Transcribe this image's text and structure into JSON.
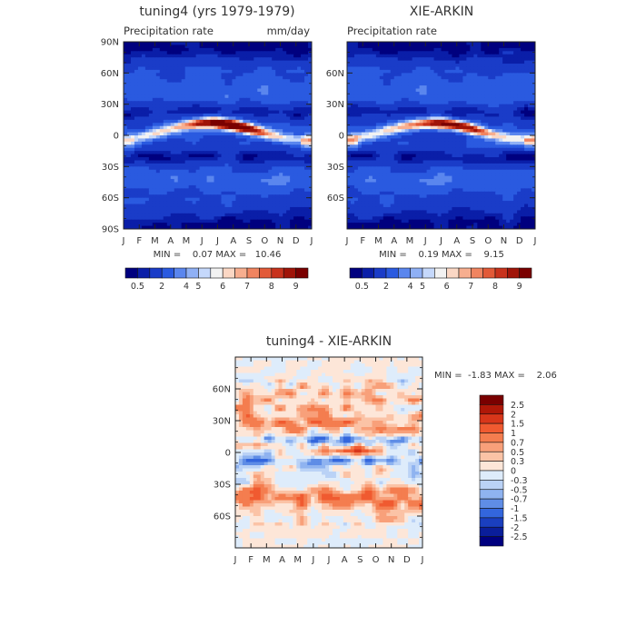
{
  "chart_data": [
    {
      "type": "heatmap",
      "id": "model",
      "title": "tuning4 (yrs 1979-1979)",
      "subtitle_left": "Precipitation rate",
      "subtitle_right": "mm/day",
      "x_ticks": [
        "J",
        "F",
        "M",
        "A",
        "M",
        "J",
        "J",
        "A",
        "S",
        "O",
        "N",
        "D",
        "J"
      ],
      "y_ticks": [
        "90N",
        "60N",
        "30N",
        "0",
        "30S",
        "60S",
        "90S"
      ],
      "y_range": [
        -90,
        90
      ],
      "stats": "MIN =    0.07 MAX =   10.46",
      "min": 0.07,
      "max": 10.46,
      "colorbar_labels": [
        "0.5",
        "2",
        "4",
        "5",
        "6",
        "7",
        "8",
        "9"
      ]
    },
    {
      "type": "heatmap",
      "id": "obs",
      "title": "XIE-ARKIN",
      "subtitle_left": "Precipitation rate",
      "x_ticks": [
        "J",
        "F",
        "M",
        "A",
        "M",
        "J",
        "J",
        "A",
        "S",
        "O",
        "N",
        "D",
        "J"
      ],
      "y_ticks": [
        "60N",
        "30N",
        "0",
        "30S",
        "60S"
      ],
      "y_range": [
        -90,
        90
      ],
      "stats": "MIN =    0.19 MAX =    9.15",
      "min": 0.19,
      "max": 9.15,
      "colorbar_labels": [
        "0.5",
        "2",
        "4",
        "5",
        "6",
        "7",
        "8",
        "9"
      ]
    },
    {
      "type": "heatmap",
      "id": "diff",
      "title": "tuning4 - XIE-ARKIN",
      "x_ticks": [
        "J",
        "F",
        "M",
        "A",
        "M",
        "J",
        "J",
        "A",
        "S",
        "O",
        "N",
        "D",
        "J"
      ],
      "y_ticks": [
        "60N",
        "30N",
        "0",
        "30S",
        "60S"
      ],
      "y_range": [
        -90,
        90
      ],
      "stats": "MIN =  -1.83 MAX =    2.06",
      "min": -1.83,
      "max": 2.06,
      "colorbar_labels": [
        "2.5",
        "2",
        "1.5",
        "1",
        "0.7",
        "0.5",
        "0.3",
        "0",
        "-0.3",
        "-0.5",
        "-0.7",
        "-1",
        "-1.5",
        "-2",
        "-2.5"
      ]
    }
  ],
  "palettes": {
    "precip": [
      "#00007f",
      "#0a1ea8",
      "#1a3cc8",
      "#2a5ae0",
      "#5a86ee",
      "#8fb0f5",
      "#c5d8fb",
      "#f2f2f2",
      "#fbd7c4",
      "#f7ae8f",
      "#f08460",
      "#e25a38",
      "#c8321c",
      "#a01408",
      "#7a0000"
    ],
    "diff": [
      "#7a0000",
      "#b01808",
      "#d8361a",
      "#f05a30",
      "#f47d4f",
      "#f8a07a",
      "#fbc3a6",
      "#fde6d8",
      "#deecfb",
      "#bad2f6",
      "#8fb3f0",
      "#5f8de6",
      "#3366dd",
      "#1a3fbf",
      "#0a1e9a",
      "#00007f"
    ]
  }
}
